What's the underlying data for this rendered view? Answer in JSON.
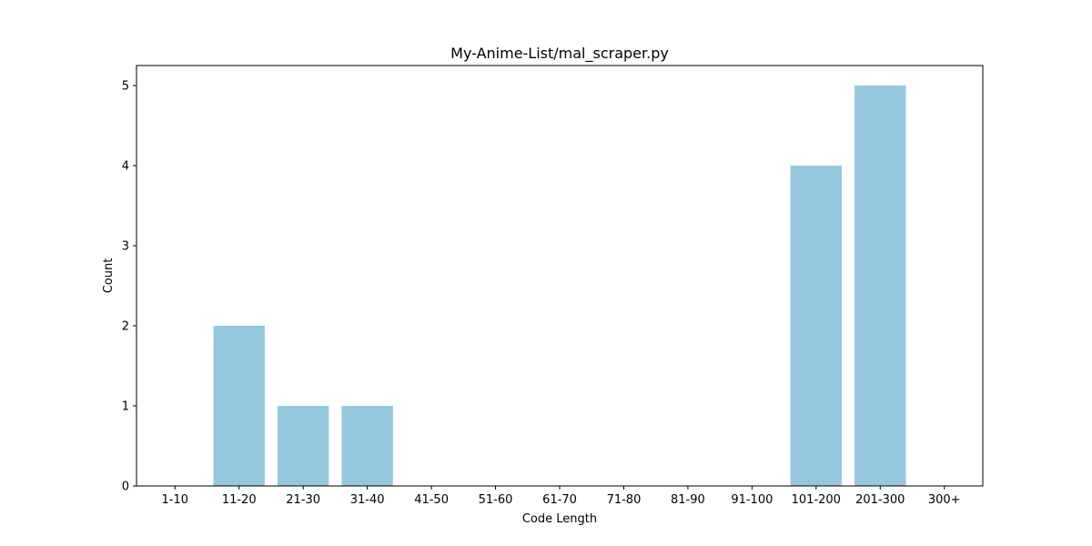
{
  "chart_data": {
    "type": "bar",
    "title": "My-Anime-List/mal_scraper.py",
    "xlabel": "Code Length",
    "ylabel": "Count",
    "categories": [
      "1-10",
      "11-20",
      "21-30",
      "31-40",
      "41-50",
      "51-60",
      "61-70",
      "71-80",
      "81-90",
      "91-100",
      "101-200",
      "201-300",
      "300+"
    ],
    "values": [
      0,
      2,
      1,
      1,
      0,
      0,
      0,
      0,
      0,
      0,
      4,
      5,
      0
    ],
    "ylim": [
      0,
      5.25
    ],
    "yticks": [
      0,
      1,
      2,
      3,
      4,
      5
    ],
    "bar_color": "#95c8dc",
    "grid": false,
    "legend": "none"
  }
}
